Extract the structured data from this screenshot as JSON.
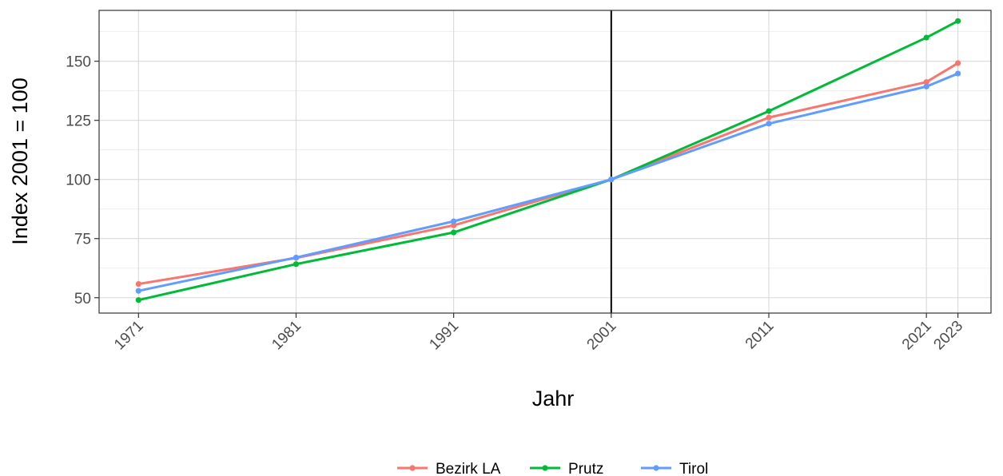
{
  "chart_data": {
    "type": "line",
    "xlabel": "Jahr",
    "ylabel": "Index 2001 = 100",
    "x": [
      1971,
      1981,
      1991,
      2001,
      2011,
      2021,
      2023
    ],
    "x_tick_labels": [
      "1971",
      "1981",
      "1991",
      "2001",
      "2011",
      "2021",
      "2023"
    ],
    "xlim": [
      1968.5,
      2025.1
    ],
    "y_ticks": [
      50,
      75,
      100,
      125,
      150
    ],
    "y_tick_labels": [
      "50",
      "75",
      "100",
      "125",
      "150"
    ],
    "ylim": [
      43.5,
      171.5
    ],
    "vline_x": 2001,
    "grid": true,
    "legend_position": "bottom",
    "series": [
      {
        "name": "Bezirk LA",
        "color": "#F8766D",
        "values": [
          55.8,
          66.8,
          80.6,
          100,
          126.2,
          141.2,
          149.2
        ]
      },
      {
        "name": "Prutz",
        "color": "#00BA38",
        "values": [
          49.0,
          64.2,
          77.6,
          100,
          128.9,
          160.0,
          167.0
        ]
      },
      {
        "name": "Tirol",
        "color": "#619CFF",
        "values": [
          52.9,
          67.0,
          82.3,
          100,
          123.6,
          139.3,
          144.8
        ]
      }
    ]
  }
}
